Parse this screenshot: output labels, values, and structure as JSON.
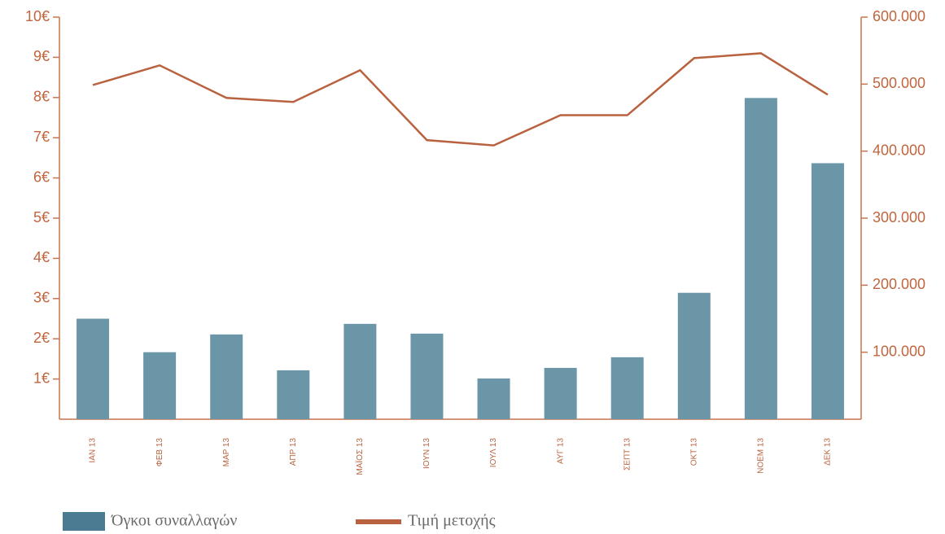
{
  "chart_data": {
    "type": "bar",
    "categories": [
      "ΙΑΝ 13",
      "ΦΕΒ 13",
      "ΜΑΡ 13",
      "ΑΠΡ 13",
      "ΜΑΪΟΣ 13",
      "ΙΟΥΝ 13",
      "ΙΟΥΛ 13",
      "ΑΥΓ 13",
      "ΣΕΠΤ 13",
      "ΟΚΤ 13",
      "ΝΟΕΜ 13",
      "ΔΕΚ 13"
    ],
    "series": [
      {
        "name": "Όγκοι συναλλαγών",
        "type": "bar",
        "axis": "y2",
        "color": "#6b96a8",
        "values": [
          150000,
          100000,
          126500,
          73000,
          142300,
          127700,
          60800,
          76600,
          92500,
          188600,
          479300,
          382000
        ]
      },
      {
        "name": "Τιμή μετοχής",
        "type": "line",
        "axis": "y",
        "color": "#b8623f",
        "values": [
          8.31,
          8.8,
          7.99,
          7.89,
          8.68,
          6.94,
          6.81,
          7.56,
          7.56,
          8.98,
          9.1,
          8.07
        ]
      }
    ],
    "ylim": [
      0,
      10
    ],
    "yticks": [
      {
        "value": 1,
        "label": "1€"
      },
      {
        "value": 2,
        "label": "2€"
      },
      {
        "value": 3,
        "label": "3€"
      },
      {
        "value": 4,
        "label": "4€"
      },
      {
        "value": 5,
        "label": "5€"
      },
      {
        "value": 6,
        "label": "6€"
      },
      {
        "value": 7,
        "label": "7€"
      },
      {
        "value": 8,
        "label": "8€"
      },
      {
        "value": 9,
        "label": "9€"
      },
      {
        "value": 10,
        "label": "10€"
      }
    ],
    "y2lim": [
      0,
      600000
    ],
    "y2ticks": [
      {
        "value": 100000,
        "label": "100.000"
      },
      {
        "value": 200000,
        "label": "200.000"
      },
      {
        "value": 300000,
        "label": "300.000"
      },
      {
        "value": 400000,
        "label": "400.000"
      },
      {
        "value": 500000,
        "label": "500.000"
      },
      {
        "value": 600000,
        "label": "600.000"
      }
    ],
    "legend": "bottom"
  }
}
